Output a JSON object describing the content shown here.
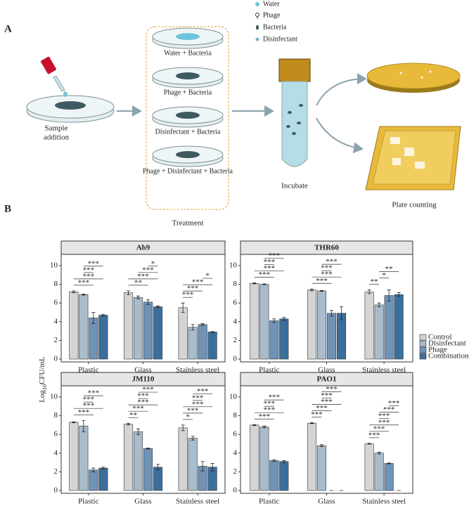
{
  "panel_a": {
    "label": "A",
    "legend": [
      "Water",
      "Phage",
      "Bacteria",
      "Disinfectant"
    ],
    "sample": [
      "Sample",
      "addition"
    ],
    "treatments": [
      "Water + Bacteria",
      "Phage + Bacteria",
      "Disinfectant + Bacteria",
      "Phage + Disinfectant + Bacteria"
    ],
    "treatment_title": "Treatment",
    "incubate": "Incubate",
    "plating": "Plate counting"
  },
  "panel_b": {
    "label": "B",
    "y_label": {
      "main": "Log",
      "subscript": "10",
      "unit": "CFU/mL"
    },
    "legend": {
      "names": [
        "Control",
        "Disinfectant",
        "Phage",
        "Combination"
      ],
      "colors": [
        "#d4d4d4",
        "#a9bccb",
        "#6f93b5",
        "#3b6f9b"
      ]
    }
  },
  "chart_data": [
    {
      "type": "bar",
      "title": "Ab9",
      "categories": [
        "Plastic",
        "Glass",
        "Stainless steel"
      ],
      "series": [
        {
          "values": [
            7.2,
            7.1,
            5.5
          ],
          "errors": [
            0.1,
            0.2,
            0.5
          ]
        },
        {
          "values": [
            6.9,
            6.6,
            3.4
          ],
          "errors": [
            0.05,
            0.15,
            0.3
          ]
        },
        {
          "values": [
            4.4,
            6.1,
            3.7
          ],
          "errors": [
            0.6,
            0.25,
            0.1
          ]
        },
        {
          "values": [
            4.7,
            5.6,
            2.9
          ],
          "errors": [
            0.1,
            0.1,
            0.05
          ]
        }
      ],
      "ylim": [
        -0.3,
        11.2
      ],
      "yticks": [
        0,
        2,
        4,
        6,
        8,
        10
      ],
      "significance": [
        [
          {
            "label": "***",
            "bars": [
              1,
              3
            ]
          },
          {
            "label": "***",
            "bars": [
              1,
              2
            ]
          },
          {
            "label": "***",
            "bars": [
              0,
              3
            ]
          },
          {
            "label": "***",
            "bars": [
              0,
              2
            ]
          }
        ],
        [
          {
            "label": "*",
            "bars": [
              2,
              3
            ]
          },
          {
            "label": "***",
            "bars": [
              1,
              3
            ]
          },
          {
            "label": "***",
            "bars": [
              0,
              3
            ]
          },
          {
            "label": "**",
            "bars": [
              0,
              2
            ]
          }
        ],
        [
          {
            "label": "*",
            "bars": [
              2,
              3
            ]
          },
          {
            "label": "***",
            "bars": [
              0,
              3
            ]
          },
          {
            "label": "***",
            "bars": [
              0,
              2
            ]
          },
          {
            "label": "***",
            "bars": [
              0,
              1
            ]
          }
        ]
      ]
    },
    {
      "type": "bar",
      "title": "THR60",
      "categories": [
        "Plastic",
        "Glass",
        "Stainless steel"
      ],
      "series": [
        {
          "values": [
            8.1,
            7.4,
            7.2
          ],
          "errors": [
            0.05,
            0.1,
            0.2
          ]
        },
        {
          "values": [
            8.0,
            7.3,
            5.8
          ],
          "errors": [
            0.05,
            0.05,
            0.2
          ]
        },
        {
          "values": [
            4.1,
            4.9,
            6.8
          ],
          "errors": [
            0.2,
            0.3,
            0.6
          ]
        },
        {
          "values": [
            4.3,
            4.9,
            6.9
          ],
          "errors": [
            0.15,
            0.7,
            0.2
          ]
        }
      ],
      "ylim": [
        -0.3,
        11.2
      ],
      "yticks": [
        0,
        2,
        4,
        6,
        8,
        10
      ],
      "significance": [
        [
          {
            "label": "***",
            "bars": [
              1,
              3
            ]
          },
          {
            "label": "***",
            "bars": [
              1,
              2
            ]
          },
          {
            "label": "***",
            "bars": [
              0,
              3
            ]
          },
          {
            "label": "***",
            "bars": [
              0,
              2
            ]
          }
        ],
        [
          {
            "label": "***",
            "bars": [
              1,
              3
            ]
          },
          {
            "label": "***",
            "bars": [
              1,
              2
            ]
          },
          {
            "label": "***",
            "bars": [
              0,
              3
            ]
          },
          {
            "label": "***",
            "bars": [
              0,
              2
            ]
          }
        ],
        [
          {
            "label": "**",
            "bars": [
              1,
              3
            ]
          },
          {
            "label": "*",
            "bars": [
              1,
              2
            ]
          },
          {
            "label": "**",
            "bars": [
              0,
              1
            ]
          }
        ]
      ]
    },
    {
      "type": "bar",
      "title": "JM110",
      "categories": [
        "Plastic",
        "Glass",
        "Stainless steel"
      ],
      "series": [
        {
          "values": [
            7.3,
            7.1,
            6.7
          ],
          "errors": [
            0.05,
            0.1,
            0.3
          ]
        },
        {
          "values": [
            6.9,
            6.3,
            5.6
          ],
          "errors": [
            0.6,
            0.3,
            0.2
          ]
        },
        {
          "values": [
            2.2,
            4.5,
            2.6
          ],
          "errors": [
            0.2,
            0.05,
            0.5
          ]
        },
        {
          "values": [
            2.4,
            2.5,
            2.5
          ],
          "errors": [
            0.1,
            0.3,
            0.4
          ]
        }
      ],
      "ylim": [
        -0.3,
        11.2
      ],
      "yticks": [
        0,
        2,
        4,
        6,
        8,
        10
      ],
      "significance": [
        [
          {
            "label": "***",
            "bars": [
              1,
              3
            ]
          },
          {
            "label": "***",
            "bars": [
              1,
              2
            ]
          },
          {
            "label": "***",
            "bars": [
              0,
              3
            ]
          },
          {
            "label": "***",
            "bars": [
              0,
              2
            ]
          }
        ],
        [
          {
            "label": "***",
            "bars": [
              1,
              3
            ]
          },
          {
            "label": "***",
            "bars": [
              1,
              2
            ]
          },
          {
            "label": "***",
            "bars": [
              0,
              3
            ]
          },
          {
            "label": "***",
            "bars": [
              0,
              2
            ]
          },
          {
            "label": "**",
            "bars": [
              0,
              1
            ]
          }
        ],
        [
          {
            "label": "***",
            "bars": [
              1,
              3
            ]
          },
          {
            "label": "***",
            "bars": [
              1,
              2
            ]
          },
          {
            "label": "***",
            "bars": [
              0,
              3
            ]
          },
          {
            "label": "***",
            "bars": [
              0,
              2
            ]
          },
          {
            "label": "*",
            "bars": [
              0,
              1
            ]
          }
        ]
      ]
    },
    {
      "type": "bar",
      "title": "PAO1",
      "categories": [
        "Plastic",
        "Glass",
        "Stainless steel"
      ],
      "series": [
        {
          "values": [
            7.0,
            7.2,
            5.0
          ],
          "errors": [
            0.05,
            0.05,
            0.05
          ]
        },
        {
          "values": [
            6.8,
            4.8,
            4.0
          ],
          "errors": [
            0.1,
            0.1,
            0.1
          ]
        },
        {
          "values": [
            3.2,
            0,
            2.9
          ],
          "errors": [
            0.1,
            0,
            0.05
          ]
        },
        {
          "values": [
            3.1,
            0,
            0
          ],
          "errors": [
            0.1,
            0,
            0
          ]
        }
      ],
      "ylim": [
        -0.3,
        11.2
      ],
      "yticks": [
        0,
        2,
        4,
        6,
        8,
        10
      ],
      "significance": [
        [
          {
            "label": "***",
            "bars": [
              1,
              3
            ]
          },
          {
            "label": "***",
            "bars": [
              1,
              2
            ]
          },
          {
            "label": "***",
            "bars": [
              0,
              3
            ]
          },
          {
            "label": "***",
            "bars": [
              0,
              2
            ]
          }
        ],
        [
          {
            "label": "***",
            "bars": [
              1,
              3
            ]
          },
          {
            "label": "***",
            "bars": [
              1,
              2
            ]
          },
          {
            "label": "***",
            "bars": [
              0,
              3
            ]
          },
          {
            "label": "***",
            "bars": [
              0,
              2
            ]
          },
          {
            "label": "***",
            "bars": [
              0,
              1
            ]
          }
        ],
        [
          {
            "label": "***",
            "bars": [
              2,
              3
            ]
          },
          {
            "label": "***",
            "bars": [
              1,
              3
            ]
          },
          {
            "label": "***",
            "bars": [
              1,
              2
            ]
          },
          {
            "label": "***",
            "bars": [
              0,
              3
            ]
          },
          {
            "label": "***",
            "bars": [
              0,
              2
            ]
          },
          {
            "label": "***",
            "bars": [
              0,
              1
            ]
          }
        ]
      ]
    }
  ]
}
